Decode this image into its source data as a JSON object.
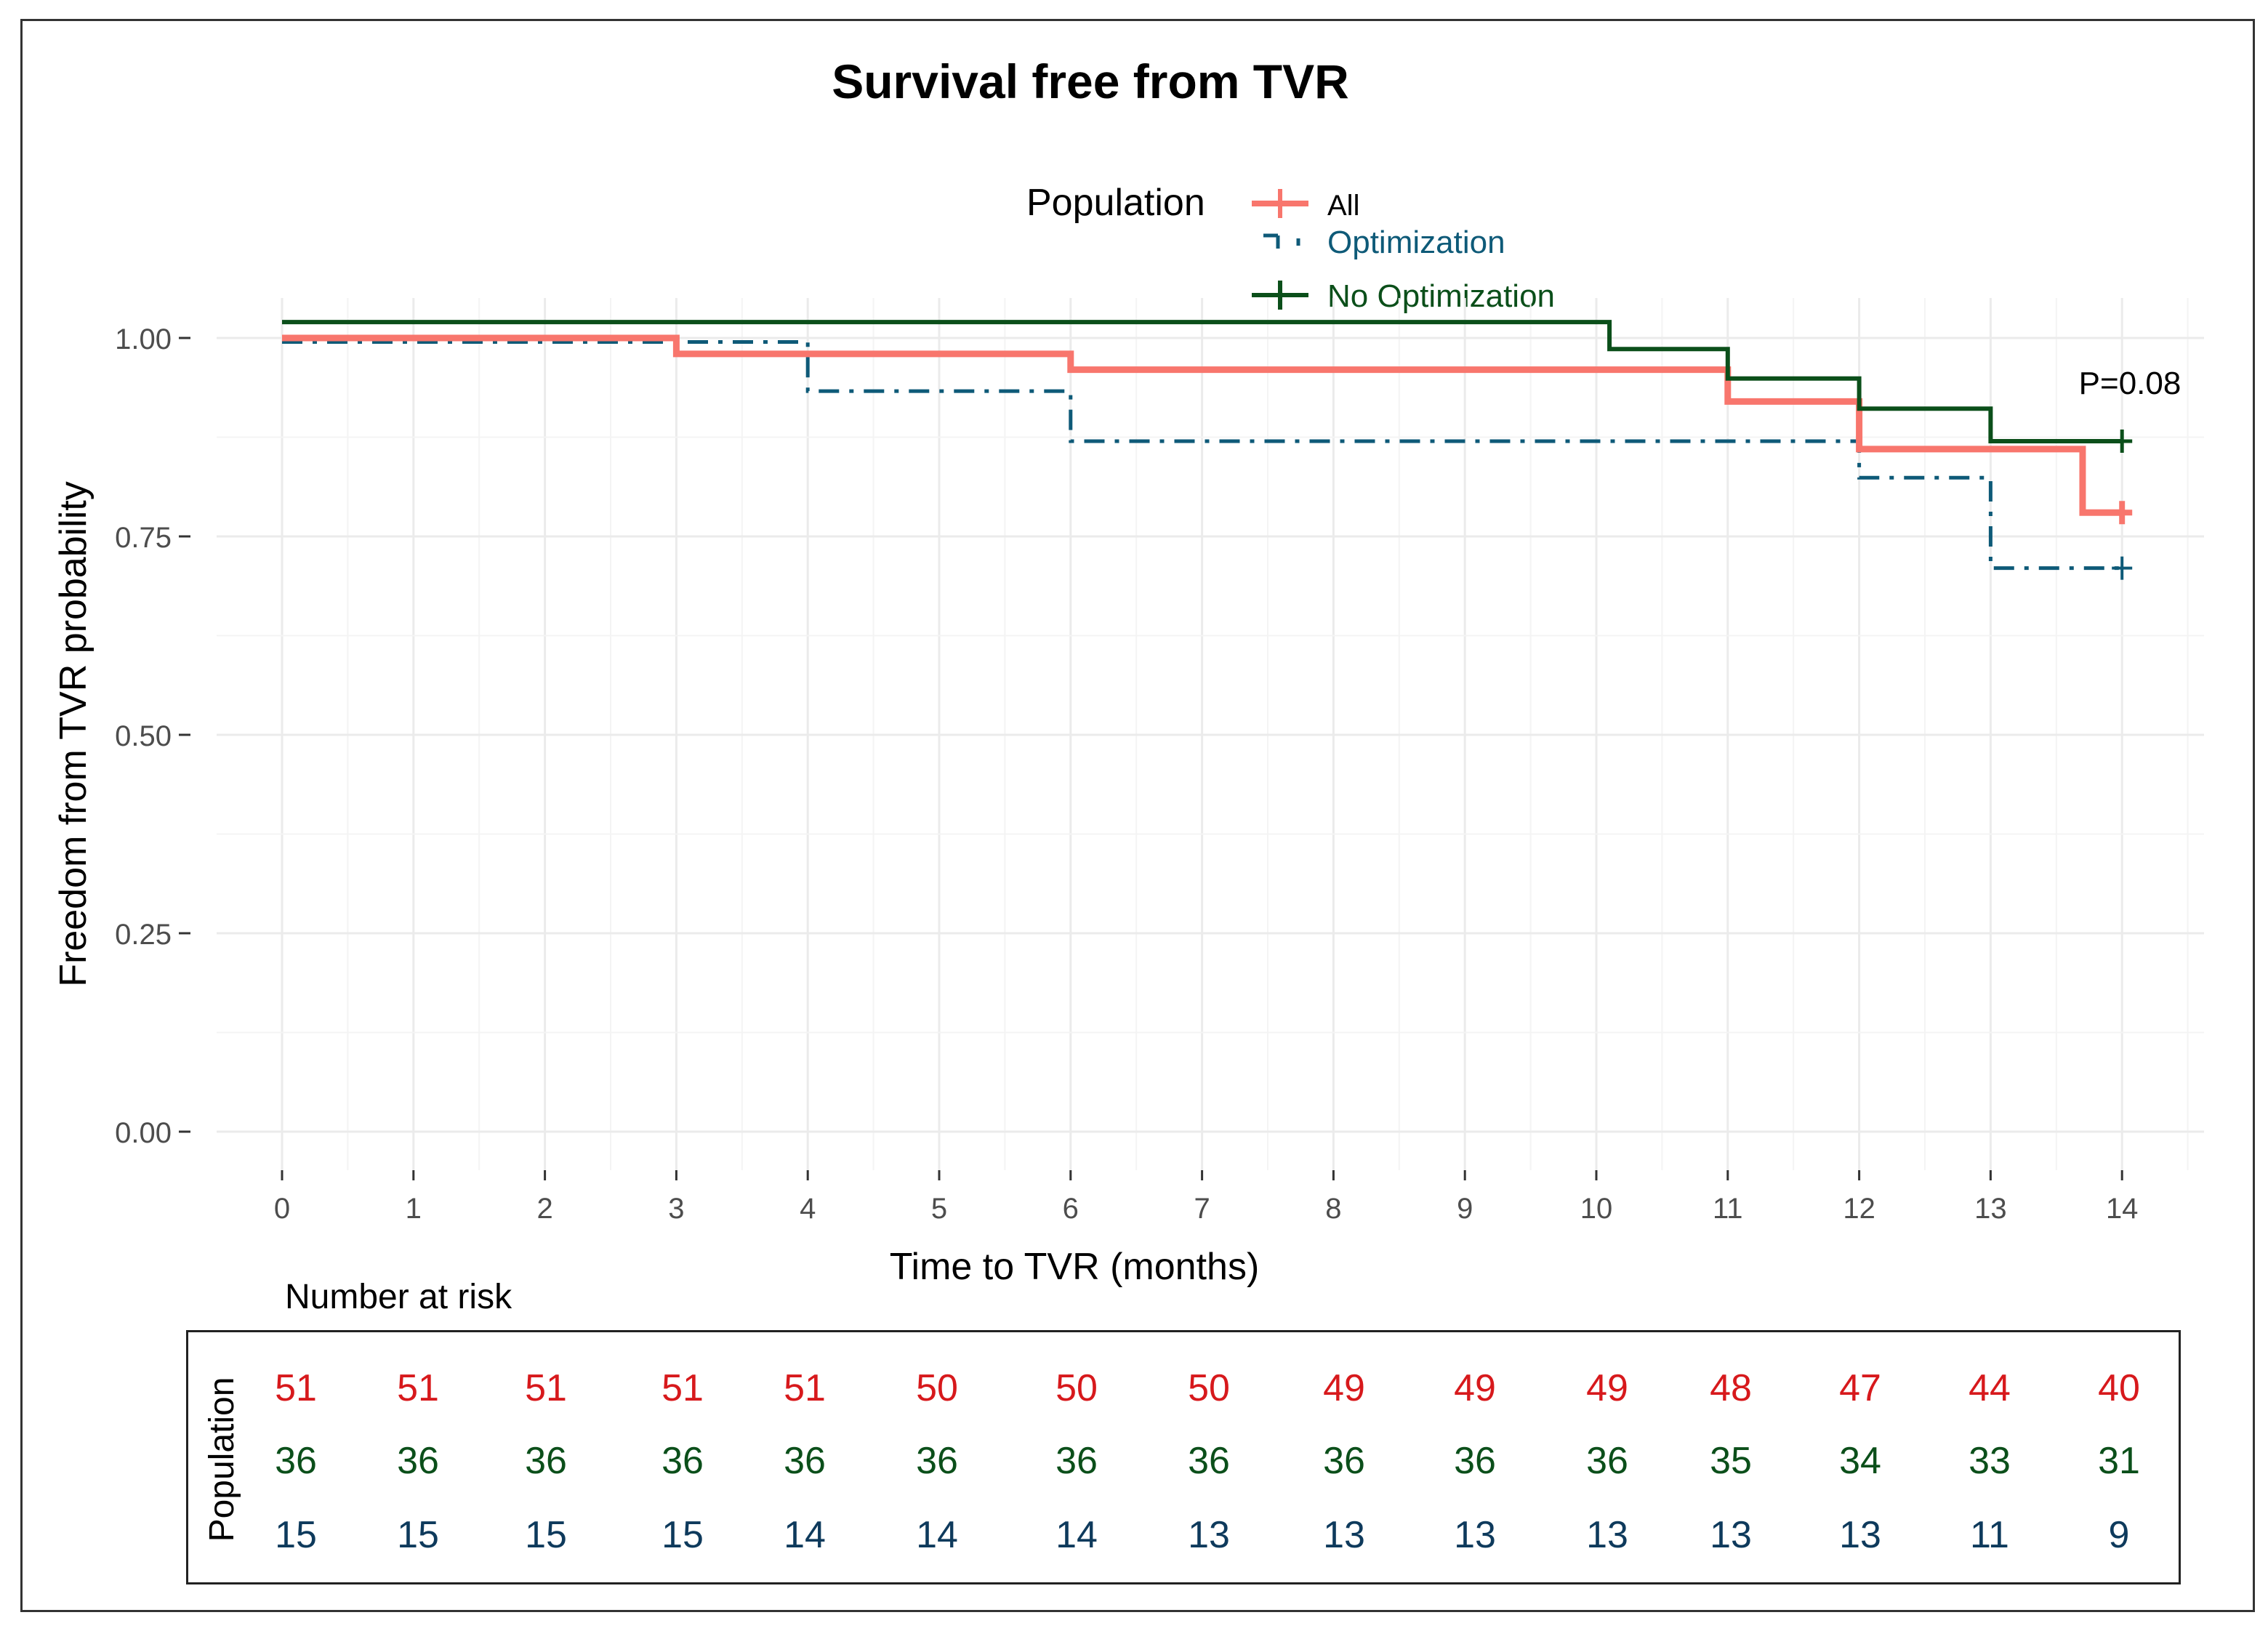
{
  "chart_data": {
    "type": "line",
    "title": "Survival free from TVR",
    "xlabel": "Time to TVR (months)",
    "ylabel": "Freedom from TVR probability",
    "xlim": [
      -1,
      15
    ],
    "ylim": [
      -0.05,
      1.05
    ],
    "x_ticks": [
      0,
      1,
      2,
      3,
      4,
      5,
      6,
      7,
      8,
      9,
      10,
      11,
      12,
      13,
      14
    ],
    "x_tick_labels": [
      "0",
      "1",
      "2",
      "3",
      "4",
      "5",
      "6",
      "7",
      "8",
      "9",
      "10",
      "11",
      "12",
      "13",
      "14"
    ],
    "y_ticks": [
      0,
      0.25,
      0.5,
      0.75,
      1.0
    ],
    "y_tick_labels": [
      "0.00",
      "0.25",
      "0.50",
      "0.75",
      "1.00"
    ],
    "grid": true,
    "legend": {
      "title": "Population",
      "placement": "top",
      "entries": [
        "All",
        "Optimization",
        "No Optimization"
      ]
    },
    "annotation": "P=0.08",
    "series": [
      {
        "name": "All",
        "color": "#f8766d",
        "style": "solid-thick",
        "steps": [
          [
            0,
            1.0
          ],
          [
            3,
            0.98
          ],
          [
            6,
            0.96
          ],
          [
            11,
            0.92
          ],
          [
            12,
            0.86
          ],
          [
            13.7,
            0.78
          ],
          [
            14,
            0.78
          ]
        ]
      },
      {
        "name": "Optimization",
        "color": "#0e5a78",
        "style": "dashdot",
        "steps": [
          [
            0,
            0.995
          ],
          [
            4,
            0.933
          ],
          [
            6,
            0.87
          ],
          [
            12,
            0.824
          ],
          [
            13,
            0.71
          ],
          [
            14,
            0.71
          ]
        ]
      },
      {
        "name": "No Optimization",
        "color": "#0b4f1a",
        "style": "solid",
        "steps": [
          [
            0,
            1.02
          ],
          [
            10.1,
            0.986
          ],
          [
            11,
            0.949
          ],
          [
            12,
            0.911
          ],
          [
            13,
            0.87
          ],
          [
            14,
            0.87
          ]
        ]
      }
    ]
  },
  "risk_table": {
    "title": "Number at risk",
    "row_label": "Population",
    "rows": [
      {
        "name": "All",
        "color": "#d7191c",
        "values": [
          "51",
          "51",
          "51",
          "51",
          "51",
          "50",
          "50",
          "50",
          "49",
          "49",
          "49",
          "48",
          "47",
          "44",
          "40"
        ]
      },
      {
        "name": "No Optimization",
        "color": "#0b4f1a",
        "values": [
          "36",
          "36",
          "36",
          "36",
          "36",
          "36",
          "36",
          "36",
          "36",
          "36",
          "36",
          "35",
          "34",
          "33",
          "31"
        ]
      },
      {
        "name": "Optimization",
        "color": "#0e3a5c",
        "values": [
          "15",
          "15",
          "15",
          "15",
          "14",
          "14",
          "14",
          "13",
          "13",
          "13",
          "13",
          "13",
          "13",
          "11",
          "9"
        ]
      }
    ]
  }
}
